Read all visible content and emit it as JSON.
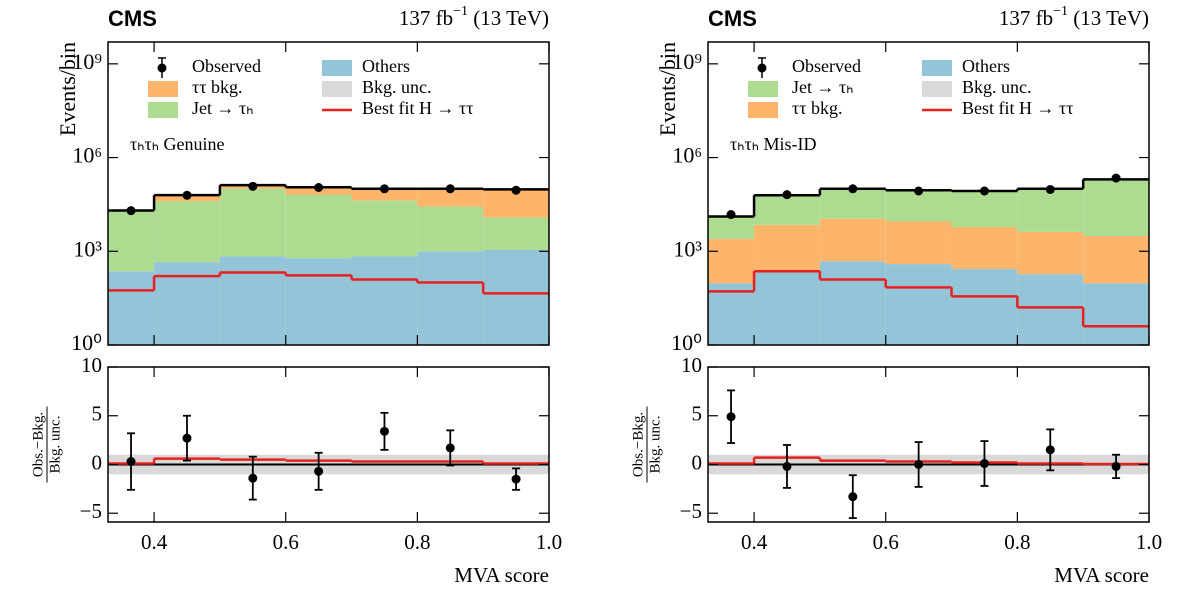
{
  "chart_data": [
    {
      "type": "stacked_histogram",
      "experiment": "CMS",
      "luminosity": "137 fb",
      "luminosity_exponent": "−1",
      "energy": "(13 TeV)",
      "annotation": "τₕτₕ Genuine",
      "ylabel": "Events/bin",
      "xlabel": "MVA score",
      "bins": [
        0.33,
        0.4,
        0.5,
        0.6,
        0.7,
        0.8,
        0.9,
        1.0
      ],
      "xlim": [
        0.33,
        1.0
      ],
      "xticks": [
        0.4,
        0.6,
        0.8,
        {
          "value": 1.0,
          "label": "1.0"
        }
      ],
      "log_y": true,
      "ylim": [
        1,
        5000000000
      ],
      "yticks": [
        {
          "value": 1,
          "label": "10⁰"
        },
        {
          "value": 1000,
          "label": "10³"
        },
        {
          "value": 1000000,
          "label": "10⁶"
        },
        {
          "value": 1000000000,
          "label": "10⁹"
        }
      ],
      "series": [
        {
          "name": "Others",
          "color": "#94c4d7",
          "values": [
            230,
            450,
            700,
            600,
            700,
            1000,
            1100
          ]
        },
        {
          "name": "Jet → τₕ",
          "color": "#addc91",
          "values": [
            19000,
            40000,
            100000,
            65000,
            42000,
            26000,
            11000
          ]
        },
        {
          "name": "ττ bkg.",
          "color": "#fdb56b",
          "values": [
            1000,
            22000,
            30000,
            46000,
            58000,
            73000,
            84000
          ]
        }
      ],
      "observed": {
        "name": "Observed",
        "color": "#000000",
        "x": [
          0.365,
          0.45,
          0.55,
          0.65,
          0.75,
          0.85,
          0.95
        ],
        "values": [
          20000,
          62000,
          120000,
          110000,
          100000,
          100000,
          90000
        ]
      },
      "signal": {
        "name": "Best fit H → ττ",
        "color": "#e8211f",
        "values": [
          56,
          160,
          210,
          170,
          125,
          100,
          45
        ]
      },
      "uncertainty": {
        "name": "Bkg. unc.",
        "color": "#d9d9d9"
      },
      "ratio": {
        "ylabel": [
          "Obs.−Bkg.",
          "Bkg. unc."
        ],
        "ylim": [
          -5.9,
          10
        ],
        "yticks": [
          {
            "value": -5,
            "label": "−5"
          },
          0,
          5,
          10
        ],
        "band": [
          -1,
          1
        ],
        "observed": {
          "values": [
            0.3,
            2.7,
            -1.4,
            -0.7,
            3.4,
            1.7,
            -1.5
          ],
          "errors": [
            2.9,
            2.3,
            2.2,
            1.9,
            1.9,
            1.8,
            1.1
          ]
        },
        "signal": {
          "values": [
            0.1,
            0.6,
            0.5,
            0.4,
            0.3,
            0.3,
            0.1
          ]
        }
      }
    },
    {
      "type": "stacked_histogram",
      "experiment": "CMS",
      "luminosity": "137 fb",
      "luminosity_exponent": "−1",
      "energy": "(13 TeV)",
      "annotation": "τₕτₕ Mis-ID",
      "ylabel": "Events/bin",
      "xlabel": "MVA score",
      "bins": [
        0.33,
        0.4,
        0.5,
        0.6,
        0.7,
        0.8,
        0.9,
        1.0
      ],
      "xlim": [
        0.33,
        1.0
      ],
      "xticks": [
        0.4,
        0.6,
        0.8,
        {
          "value": 1.0,
          "label": "1.0"
        }
      ],
      "log_y": true,
      "ylim": [
        1,
        5000000000
      ],
      "yticks": [
        {
          "value": 1,
          "label": "10⁰"
        },
        {
          "value": 1000,
          "label": "10³"
        },
        {
          "value": 1000000,
          "label": "10⁶"
        },
        {
          "value": 1000000000,
          "label": "10⁹"
        }
      ],
      "series": [
        {
          "name": "Others",
          "color": "#94c4d7",
          "values": [
            95,
            230,
            480,
            390,
            270,
            185,
            95
          ]
        },
        {
          "name": "ττ bkg.",
          "color": "#fdb56b",
          "values": [
            2400,
            6800,
            10500,
            8600,
            5700,
            4000,
            3000
          ]
        },
        {
          "name": "Jet → τₕ",
          "color": "#addc91",
          "values": [
            10500,
            55000,
            89000,
            81000,
            79000,
            96000,
            197000
          ]
        }
      ],
      "observed": {
        "name": "Observed",
        "color": "#000000",
        "x": [
          0.365,
          0.45,
          0.55,
          0.65,
          0.75,
          0.85,
          0.95
        ],
        "values": [
          15000,
          65000,
          100000,
          85000,
          85000,
          95000,
          220000
        ]
      },
      "signal": {
        "name": "Best fit H → ττ",
        "color": "#e8211f",
        "values": [
          52,
          230,
          125,
          70,
          36,
          16,
          4
        ]
      },
      "uncertainty": {
        "name": "Bkg. unc.",
        "color": "#d9d9d9"
      },
      "ratio": {
        "ylabel": [
          "Obs.−Bkg.",
          "Bkg. unc."
        ],
        "ylim": [
          -5.9,
          10
        ],
        "yticks": [
          {
            "value": -5,
            "label": "−5"
          },
          0,
          5,
          10
        ],
        "band": [
          -1,
          1
        ],
        "observed": {
          "values": [
            4.9,
            -0.2,
            -3.3,
            0.0,
            0.1,
            1.5,
            -0.2
          ],
          "errors": [
            2.7,
            2.2,
            2.2,
            2.3,
            2.3,
            2.1,
            1.2
          ]
        },
        "signal": {
          "values": [
            0.1,
            0.7,
            0.4,
            0.3,
            0.2,
            0.1,
            0.05
          ]
        }
      }
    }
  ]
}
